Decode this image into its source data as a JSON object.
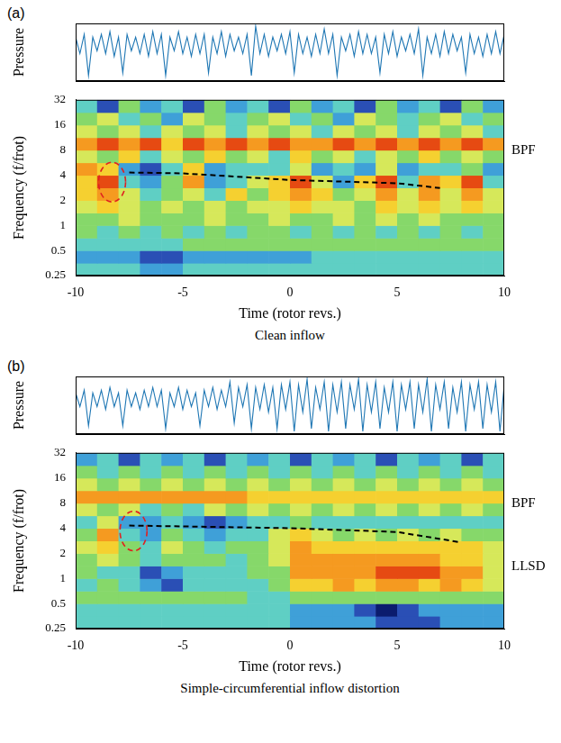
{
  "chart_data": [
    {
      "type": "line",
      "panel_label": "(a)",
      "y_label": "Pressure",
      "color": "#1f77b4",
      "grid": false,
      "tick_labels": false,
      "xlim": [
        -10,
        10
      ],
      "ylim": [
        0,
        1.05
      ],
      "x": [
        -10,
        -9.8,
        -9.6,
        -9.4,
        -9.2,
        -9,
        -8.8,
        -8.6,
        -8.4,
        -8.2,
        -8,
        -7.8,
        -7.6,
        -7.4,
        -7.2,
        -7,
        -6.8,
        -6.6,
        -6.4,
        -6.2,
        -6,
        -5.8,
        -5.6,
        -5.4,
        -5.2,
        -5,
        -4.8,
        -4.6,
        -4.4,
        -4.2,
        -4,
        -3.8,
        -3.6,
        -3.4,
        -3.2,
        -3,
        -2.8,
        -2.6,
        -2.4,
        -2.2,
        -2,
        -1.8,
        -1.6,
        -1.4,
        -1.2,
        -1,
        -0.8,
        -0.6,
        -0.4,
        -0.2,
        0,
        0.2,
        0.4,
        0.6,
        0.8,
        1,
        1.2,
        1.4,
        1.6,
        1.8,
        2,
        2.2,
        2.4,
        2.6,
        2.8,
        3,
        3.2,
        3.4,
        3.6,
        3.8,
        4,
        4.2,
        4.4,
        4.6,
        4.8,
        5,
        5.2,
        5.4,
        5.6,
        5.8,
        6,
        6.2,
        6.4,
        6.6,
        6.8,
        7,
        7.2,
        7.4,
        7.6,
        7.8,
        8,
        8.2,
        8.4,
        8.6,
        8.8,
        9,
        9.2,
        9.4,
        9.6,
        9.8,
        10
      ],
      "values": [
        0.8,
        0.5,
        0.85,
        0.1,
        0.8,
        0.55,
        0.85,
        0.5,
        0.9,
        0.45,
        0.8,
        0.15,
        0.85,
        0.55,
        0.8,
        0.5,
        0.85,
        0.45,
        0.9,
        0.5,
        0.85,
        0.1,
        0.8,
        0.55,
        0.9,
        0.5,
        0.8,
        0.45,
        0.85,
        0.5,
        0.85,
        0.15,
        0.8,
        0.5,
        0.9,
        0.45,
        0.85,
        0.55,
        0.8,
        0.5,
        0.85,
        0.1,
        1.0,
        0.5,
        0.85,
        0.45,
        0.8,
        0.55,
        0.85,
        0.5,
        0.9,
        0.15,
        0.85,
        0.5,
        0.8,
        0.45,
        0.85,
        0.5,
        0.95,
        0.5,
        0.85,
        0.1,
        0.8,
        0.55,
        0.85,
        0.45,
        0.9,
        0.5,
        0.85,
        0.5,
        0.8,
        0.15,
        0.85,
        0.5,
        0.9,
        0.45,
        0.8,
        0.55,
        0.85,
        0.5,
        0.95,
        0.1,
        0.8,
        0.5,
        0.85,
        0.45,
        0.9,
        0.5,
        0.85,
        0.55,
        0.8,
        0.15,
        0.85,
        0.5,
        0.8,
        0.45,
        0.85,
        0.5,
        0.9,
        0.5,
        0.85
      ]
    },
    {
      "type": "heatmap",
      "caption": "Clean inflow",
      "x_label": "Time (rotor revs.)",
      "y_label": "Frequency (f/frot)",
      "log": "y",
      "grid": false,
      "xlim": [
        -10,
        10
      ],
      "xticks": [
        -10,
        -5,
        0,
        5,
        10
      ],
      "ylim": [
        0.25,
        32
      ],
      "yticks": [
        0.25,
        0.5,
        1,
        2,
        4,
        8,
        16,
        32
      ],
      "zlim": [
        0,
        9
      ],
      "x_bins": [
        -10,
        -9,
        -8,
        -7,
        -6,
        -5,
        -4,
        -3,
        -2,
        -1,
        0,
        1,
        2,
        3,
        4,
        5,
        6,
        7,
        8,
        9,
        10
      ],
      "y_bins": [
        0.25,
        0.354,
        0.5,
        0.707,
        1,
        1.414,
        2,
        2.828,
        4,
        5.657,
        8,
        11.31,
        16,
        22.63,
        32
      ],
      "cells": [
        [
          3,
          3,
          3,
          2,
          2,
          3,
          3,
          3,
          3,
          3,
          3,
          3,
          3,
          3,
          3,
          3,
          3,
          3,
          3,
          3
        ],
        [
          2,
          2,
          2,
          1,
          1,
          2,
          2,
          2,
          2,
          2,
          2,
          3,
          3,
          3,
          3,
          3,
          3,
          3,
          3,
          3
        ],
        [
          3,
          3,
          3,
          3,
          3,
          4,
          4,
          4,
          4,
          4,
          4,
          4,
          4,
          4,
          4,
          4,
          4,
          4,
          4,
          4
        ],
        [
          4,
          3,
          4,
          3,
          4,
          3,
          4,
          3,
          4,
          4,
          3,
          4,
          3,
          4,
          3,
          4,
          3,
          4,
          3,
          4
        ],
        [
          4,
          4,
          5,
          4,
          4,
          4,
          5,
          4,
          4,
          5,
          4,
          4,
          5,
          4,
          5,
          4,
          5,
          4,
          4,
          4
        ],
        [
          5,
          6,
          5,
          4,
          5,
          4,
          5,
          4,
          5,
          5,
          6,
          5,
          5,
          4,
          6,
          5,
          6,
          5,
          6,
          5
        ],
        [
          6,
          7,
          5,
          3,
          4,
          5,
          3,
          6,
          4,
          6,
          7,
          6,
          4,
          5,
          7,
          5,
          7,
          5,
          7,
          5
        ],
        [
          6,
          8,
          3,
          2,
          4,
          7,
          2,
          3,
          5,
          6,
          8,
          5,
          2,
          6,
          8,
          3,
          7,
          6,
          8,
          3
        ],
        [
          7,
          6,
          2,
          1,
          3,
          6,
          2,
          3,
          3,
          3,
          5,
          2,
          3,
          2,
          5,
          2,
          3,
          3,
          4,
          2
        ],
        [
          5,
          4,
          6,
          3,
          5,
          4,
          6,
          4,
          5,
          3,
          6,
          4,
          5,
          3,
          5,
          4,
          6,
          4,
          5,
          4
        ],
        [
          7,
          8,
          7,
          8,
          6,
          8,
          7,
          8,
          7,
          8,
          7,
          7,
          8,
          7,
          8,
          7,
          8,
          7,
          8,
          7
        ],
        [
          5,
          4,
          5,
          3,
          5,
          4,
          5,
          3,
          5,
          4,
          5,
          3,
          5,
          4,
          5,
          3,
          5,
          4,
          5,
          3
        ],
        [
          4,
          5,
          3,
          4,
          2,
          5,
          4,
          3,
          4,
          5,
          3,
          4,
          2,
          5,
          4,
          3,
          4,
          5,
          3,
          4
        ],
        [
          3,
          1,
          4,
          2,
          3,
          1,
          4,
          2,
          3,
          1,
          4,
          2,
          3,
          1,
          4,
          2,
          3,
          1,
          4,
          2
        ]
      ],
      "trend": {
        "color": "#000000",
        "line_style": "dashed",
        "x": [
          -7.5,
          -5,
          0,
          5,
          7
        ],
        "y": [
          4.3,
          4.2,
          3.5,
          3.2,
          2.8
        ]
      },
      "circle": {
        "color": "#e02020",
        "line_style": "dashed",
        "x": -8.3,
        "y": 3.3
      },
      "annotations": [
        {
          "text": "BPF",
          "y": 8
        }
      ]
    },
    {
      "type": "line",
      "panel_label": "(b)",
      "y_label": "Pressure",
      "color": "#1f77b4",
      "grid": false,
      "tick_labels": false,
      "xlim": [
        -10,
        10
      ],
      "ylim": [
        0,
        1.05
      ],
      "x": [
        -10,
        -9.8,
        -9.6,
        -9.4,
        -9.2,
        -9,
        -8.8,
        -8.6,
        -8.4,
        -8.2,
        -8,
        -7.8,
        -7.6,
        -7.4,
        -7.2,
        -7,
        -6.8,
        -6.6,
        -6.4,
        -6.2,
        -6,
        -5.8,
        -5.6,
        -5.4,
        -5.2,
        -5,
        -4.8,
        -4.6,
        -4.4,
        -4.2,
        -4,
        -3.8,
        -3.6,
        -3.4,
        -3.2,
        -3,
        -2.8,
        -2.6,
        -2.4,
        -2.2,
        -2,
        -1.8,
        -1.6,
        -1.4,
        -1.2,
        -1,
        -0.8,
        -0.6,
        -0.4,
        -0.2,
        0,
        0.2,
        0.4,
        0.6,
        0.8,
        1,
        1.2,
        1.4,
        1.6,
        1.8,
        2,
        2.2,
        2.4,
        2.6,
        2.8,
        3,
        3.2,
        3.4,
        3.6,
        3.8,
        4,
        4.2,
        4.4,
        4.6,
        4.8,
        5,
        5.2,
        5.4,
        5.6,
        5.8,
        6,
        6.2,
        6.4,
        6.6,
        6.8,
        7,
        7.2,
        7.4,
        7.6,
        7.8,
        8,
        8.2,
        8.4,
        8.6,
        8.8,
        9,
        9.2,
        9.4,
        9.6,
        9.8,
        10
      ],
      "values": [
        0.75,
        0.5,
        0.8,
        0.15,
        0.75,
        0.5,
        0.8,
        0.45,
        0.85,
        0.5,
        0.75,
        0.15,
        0.8,
        0.5,
        0.75,
        0.45,
        0.8,
        0.5,
        0.85,
        0.5,
        0.8,
        0.1,
        0.75,
        0.5,
        0.85,
        0.45,
        0.8,
        0.5,
        0.75,
        0.15,
        0.8,
        0.5,
        0.85,
        0.45,
        0.8,
        0.5,
        0.95,
        0.2,
        0.85,
        0.5,
        0.9,
        0.1,
        0.85,
        0.45,
        0.9,
        0.4,
        0.85,
        0.1,
        0.9,
        0.45,
        0.95,
        0.05,
        0.9,
        0.4,
        1.0,
        0.1,
        0.85,
        0.45,
        0.95,
        0.05,
        0.9,
        0.4,
        0.95,
        0.1,
        0.9,
        0.45,
        1.0,
        0.05,
        0.9,
        0.4,
        0.95,
        0.1,
        0.85,
        0.4,
        0.95,
        0.05,
        0.9,
        0.45,
        0.95,
        0.1,
        0.9,
        0.4,
        1.0,
        0.05,
        0.9,
        0.45,
        0.95,
        0.1,
        0.85,
        0.4,
        0.95,
        0.05,
        0.9,
        0.45,
        0.95,
        0.1,
        0.9,
        0.4,
        0.95,
        0.05,
        0.9
      ]
    },
    {
      "type": "heatmap",
      "caption": "Simple-circumferential inflow distortion",
      "x_label": "Time (rotor revs.)",
      "y_label": "Frequency (f/frot)",
      "log": "y",
      "grid": false,
      "xlim": [
        -10,
        10
      ],
      "xticks": [
        -10,
        -5,
        0,
        5,
        10
      ],
      "ylim": [
        0.25,
        32
      ],
      "yticks": [
        0.25,
        0.5,
        1,
        2,
        4,
        8,
        16,
        32
      ],
      "zlim": [
        0,
        9
      ],
      "x_bins": [
        -10,
        -9,
        -8,
        -7,
        -6,
        -5,
        -4,
        -3,
        -2,
        -1,
        0,
        1,
        2,
        3,
        4,
        5,
        6,
        7,
        8,
        9,
        10
      ],
      "y_bins": [
        0.25,
        0.354,
        0.5,
        0.707,
        1,
        1.414,
        2,
        2.828,
        4,
        5.657,
        8,
        11.31,
        16,
        22.63,
        32
      ],
      "cells": [
        [
          3,
          3,
          3,
          3,
          3,
          3,
          3,
          3,
          3,
          3,
          2,
          2,
          2,
          2,
          1,
          1,
          1,
          2,
          2,
          2
        ],
        [
          3,
          3,
          3,
          3,
          3,
          3,
          3,
          3,
          3,
          3,
          2,
          2,
          2,
          1,
          0,
          1,
          2,
          2,
          2,
          2
        ],
        [
          4,
          4,
          4,
          4,
          4,
          4,
          4,
          4,
          3,
          3,
          4,
          4,
          4,
          4,
          4,
          4,
          4,
          4,
          4,
          4
        ],
        [
          3,
          4,
          3,
          2,
          1,
          3,
          3,
          3,
          3,
          4,
          6,
          6,
          7,
          6,
          7,
          7,
          6,
          7,
          6,
          5
        ],
        [
          4,
          3,
          3,
          1,
          2,
          3,
          3,
          3,
          4,
          4,
          7,
          7,
          7,
          7,
          8,
          8,
          8,
          7,
          7,
          5
        ],
        [
          4,
          5,
          4,
          3,
          4,
          4,
          4,
          3,
          4,
          5,
          7,
          7,
          7,
          7,
          7,
          7,
          7,
          6,
          6,
          5
        ],
        [
          5,
          6,
          4,
          3,
          5,
          4,
          3,
          4,
          4,
          5,
          7,
          6,
          6,
          6,
          6,
          6,
          6,
          6,
          6,
          5
        ],
        [
          4,
          7,
          3,
          2,
          4,
          3,
          2,
          3,
          3,
          5,
          6,
          5,
          4,
          5,
          4,
          5,
          4,
          5,
          4,
          4
        ],
        [
          3,
          5,
          2,
          2,
          3,
          2,
          1,
          2,
          3,
          3,
          4,
          3,
          3,
          3,
          3,
          3,
          3,
          3,
          3,
          3
        ],
        [
          5,
          4,
          5,
          3,
          4,
          3,
          5,
          4,
          5,
          4,
          5,
          4,
          5,
          4,
          5,
          4,
          5,
          4,
          5,
          4
        ],
        [
          7,
          7,
          7,
          7,
          7,
          7,
          7,
          7,
          6,
          6,
          6,
          6,
          6,
          6,
          6,
          6,
          6,
          6,
          6,
          6
        ],
        [
          5,
          4,
          5,
          4,
          5,
          4,
          5,
          4,
          5,
          4,
          5,
          4,
          5,
          4,
          5,
          4,
          5,
          4,
          5,
          4
        ],
        [
          4,
          3,
          4,
          3,
          4,
          3,
          4,
          3,
          4,
          3,
          4,
          3,
          4,
          3,
          4,
          3,
          4,
          3,
          4,
          3
        ],
        [
          2,
          3,
          1,
          3,
          2,
          3,
          1,
          3,
          2,
          3,
          1,
          3,
          2,
          3,
          1,
          3,
          2,
          3,
          1,
          3
        ]
      ],
      "trend": {
        "color": "#000000",
        "line_style": "dashed",
        "x": [
          -7.5,
          0,
          5,
          8
        ],
        "y": [
          4.3,
          4,
          3.6,
          2.7
        ]
      },
      "circle": {
        "color": "#e02020",
        "line_style": "dashed",
        "x": -7.3,
        "y": 3.7
      },
      "annotations": [
        {
          "text": "BPF",
          "y": 8
        },
        {
          "text": "LLSD",
          "y": 1.4
        }
      ]
    }
  ]
}
